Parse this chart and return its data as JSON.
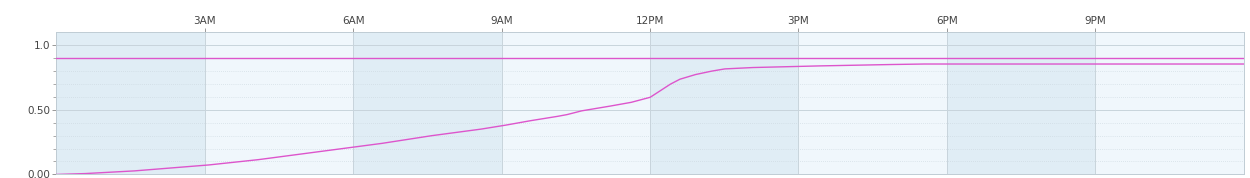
{
  "background_color": "#ffffff",
  "plot_bg_color": "#eaf2f8",
  "line_color": "#dd55cc",
  "line_width": 1.0,
  "ylim": [
    0.0,
    1.1
  ],
  "yticks": [
    0.0,
    0.5,
    1.0
  ],
  "ytick_labels": [
    "0.00",
    "0.50",
    "1.0"
  ],
  "minor_yticks": [
    0.1,
    0.2,
    0.3,
    0.4,
    0.6,
    0.7,
    0.8,
    0.9
  ],
  "xtick_labels": [
    "3AM",
    "6AM",
    "9AM",
    "12PM",
    "3PM",
    "6PM",
    "9PM"
  ],
  "xtick_positions": [
    3,
    6,
    9,
    12,
    15,
    18,
    21
  ],
  "xlim": [
    0,
    24
  ],
  "season_total": 0.9,
  "grid_color": "#c8d4dc",
  "alt_col_color1": "#e0edf5",
  "alt_col_color2": "#f0f7fc",
  "breakpoints_x": [
    0,
    0.5,
    1,
    1.5,
    2,
    2.5,
    3,
    3.5,
    4,
    4.5,
    5,
    5.5,
    6,
    6.5,
    7,
    7.5,
    8,
    8.5,
    9,
    9.5,
    10,
    10.3,
    10.6,
    11,
    11.3,
    11.6,
    12.0,
    12.2,
    12.4,
    12.6,
    12.9,
    13.2,
    13.5,
    14.0,
    15.0,
    16.0,
    17.0,
    17.5,
    24
  ],
  "breakpoints_y": [
    0.0,
    0.005,
    0.015,
    0.025,
    0.04,
    0.055,
    0.07,
    0.09,
    0.11,
    0.135,
    0.16,
    0.185,
    0.21,
    0.235,
    0.265,
    0.295,
    0.32,
    0.345,
    0.375,
    0.41,
    0.44,
    0.46,
    0.49,
    0.515,
    0.535,
    0.555,
    0.595,
    0.645,
    0.695,
    0.735,
    0.77,
    0.795,
    0.815,
    0.825,
    0.835,
    0.843,
    0.85,
    0.853,
    0.853
  ]
}
